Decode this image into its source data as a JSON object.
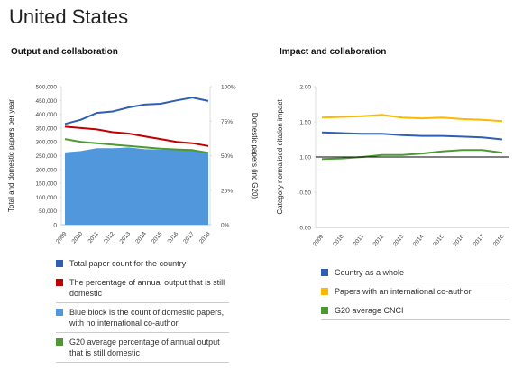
{
  "title": "United States",
  "chart_data": [
    {
      "type": "line",
      "title": "Output and collaboration",
      "ylabel": "Total and domestic papers per year",
      "y2label": "Domestic papers (inc G20)",
      "categories": [
        "2009",
        "2010",
        "2011",
        "2012",
        "2013",
        "2014",
        "2015",
        "2016",
        "2017",
        "2018"
      ],
      "ylim": [
        0,
        500000
      ],
      "yticks": [
        0,
        {
          "value": 50000,
          "label": "50,000"
        },
        {
          "value": 100000,
          "label": "100,000"
        },
        {
          "value": 150000,
          "label": "150,000"
        },
        {
          "value": 200000,
          "label": "200,000"
        },
        {
          "value": 250000,
          "label": "250,000"
        },
        {
          "value": 300000,
          "label": "300,000"
        },
        {
          "value": 350000,
          "label": "350,000"
        },
        {
          "value": 400000,
          "label": "400,000"
        },
        {
          "value": 450000,
          "label": "450,000"
        },
        {
          "value": 500000,
          "label": "500,000"
        }
      ],
      "y2lim": [
        0,
        100
      ],
      "y2ticks": [
        {
          "value": 0,
          "label": "0%"
        },
        {
          "value": 25,
          "label": "25%"
        },
        {
          "value": 50,
          "label": "50%"
        },
        {
          "value": 75,
          "label": "75%"
        },
        {
          "value": 100,
          "label": "100%"
        }
      ],
      "grid": false,
      "series": [
        {
          "name": "Total paper count for the country",
          "color": "#2f5fb3",
          "kind": "line",
          "axis": "y",
          "values": [
            365000,
            380000,
            405000,
            410000,
            425000,
            435000,
            438000,
            450000,
            460000,
            448000
          ]
        },
        {
          "name": "The percentage of annual output that is still domestic",
          "color": "#c00000",
          "kind": "line",
          "axis": "y2",
          "values": [
            71,
            70,
            69,
            67,
            66,
            64,
            62,
            60,
            59,
            57
          ]
        },
        {
          "name": "Blue block is the count of domestic papers, with no international co-author",
          "color": "#5097db",
          "kind": "area",
          "axis": "y",
          "values": [
            260000,
            265000,
            275000,
            275000,
            278000,
            272000,
            270000,
            272000,
            272000,
            255000
          ]
        },
        {
          "name": "G20 average percentage of annual output that is still domestic",
          "color": "#4d9a34",
          "kind": "line",
          "axis": "y2",
          "values": [
            62,
            60,
            59,
            58,
            57,
            56,
            55,
            54.5,
            54,
            52
          ]
        }
      ]
    },
    {
      "type": "line",
      "title": "Impact and collaboration",
      "ylabel": "Category normalised citation impact",
      "categories": [
        "2009",
        "2010",
        "2011",
        "2012",
        "2013",
        "2014",
        "2015",
        "2016",
        "2017",
        "2018"
      ],
      "ylim": [
        0,
        2
      ],
      "yticks": [
        {
          "value": 0,
          "label": "0.00"
        },
        {
          "value": 0.5,
          "label": "0.50"
        },
        {
          "value": 1,
          "label": "1.00"
        },
        {
          "value": 1.5,
          "label": "1.50"
        },
        {
          "value": 2,
          "label": "2.00"
        }
      ],
      "grid": false,
      "reference_line": 1,
      "series": [
        {
          "name": "Country as a whole",
          "color": "#2f5fb3",
          "kind": "line",
          "axis": "y",
          "values": [
            1.35,
            1.34,
            1.33,
            1.33,
            1.31,
            1.3,
            1.3,
            1.29,
            1.28,
            1.25
          ]
        },
        {
          "name": "Papers with an international co-author",
          "color": "#ffb800",
          "kind": "line",
          "axis": "y",
          "values": [
            1.56,
            1.57,
            1.58,
            1.6,
            1.56,
            1.55,
            1.56,
            1.54,
            1.53,
            1.51
          ]
        },
        {
          "name": "G20 average CNCI",
          "color": "#4d9a34",
          "kind": "line",
          "axis": "y",
          "values": [
            0.97,
            0.98,
            1.0,
            1.03,
            1.03,
            1.05,
            1.08,
            1.1,
            1.1,
            1.06
          ]
        }
      ]
    }
  ]
}
